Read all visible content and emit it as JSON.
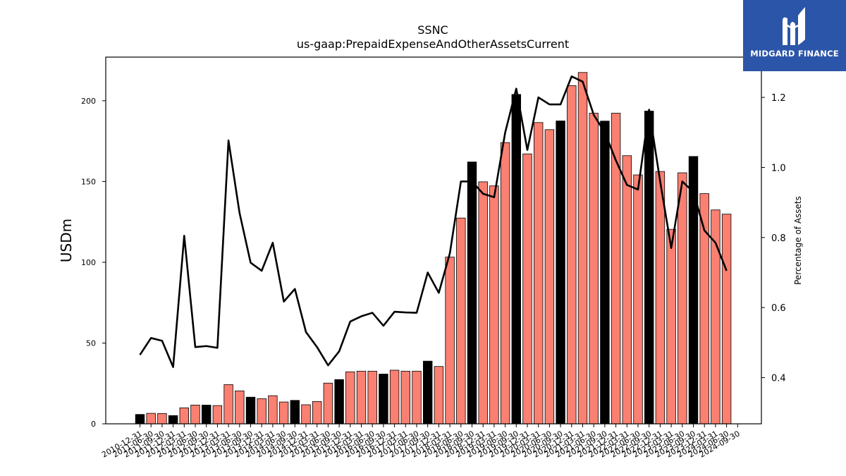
{
  "chart_data": {
    "type": "bar",
    "title": "SSNC",
    "subtitle": "us-gaap:PrepaidExpenseAndOtherAssetsCurrent",
    "ylabel": "USDm",
    "y2label": "Percentage of Assets",
    "ylim": [
      0,
      227
    ],
    "y2lim": [
      0.268,
      1.315
    ],
    "yticks": [
      0,
      50,
      100,
      150,
      200
    ],
    "y2ticks": [
      0.4,
      0.6,
      0.8,
      1.0,
      1.2
    ],
    "y2ticklabels": [
      "0.4",
      "0.6",
      "0.8",
      "1.0",
      "1.2"
    ],
    "categories": [
      "2010-12-31",
      "2011-06-30",
      "2011-09-30",
      "2011-12-31",
      "2012-03-31",
      "2012-06-30",
      "2012-09-30",
      "2012-12-31",
      "2013-03-31",
      "2013-06-30",
      "2013-09-30",
      "2013-12-31",
      "2014-03-31",
      "2014-06-30",
      "2014-09-30",
      "2014-12-31",
      "2015-03-31",
      "2015-06-30",
      "2015-09-30",
      "2015-12-31",
      "2016-03-31",
      "2016-06-30",
      "2016-09-30",
      "2016-12-31",
      "2017-03-31",
      "2017-06-30",
      "2017-09-30",
      "2017-12-31",
      "2018-03-31",
      "2018-06-30",
      "2018-09-30",
      "2018-12-31",
      "2019-03-31",
      "2019-06-30",
      "2019-09-30",
      "2019-12-31",
      "2020-03-31",
      "2020-06-30",
      "2020-09-30",
      "2020-12-31",
      "2021-03-31",
      "2021-06-30",
      "2021-09-30",
      "2021-12-31",
      "2022-03-31",
      "2022-06-30",
      "2022-09-30",
      "2022-12-31",
      "2023-03-31",
      "2023-06-30",
      "2023-09-30",
      "2023-12-31",
      "2024-03-31",
      "2024-06-30",
      "2024-09-30"
    ],
    "series": [
      {
        "kind": "bar",
        "values": [
          5.8,
          6.5,
          6.4,
          5.1,
          9.9,
          11.6,
          11.6,
          11.3,
          24.3,
          20.4,
          16.5,
          15.6,
          17.4,
          13.5,
          14.5,
          11.8,
          13.8,
          25.2,
          27.4,
          32.2,
          32.6,
          32.6,
          30.8,
          33.2,
          32.6,
          32.6,
          38.8,
          35.5,
          103.2,
          127.4,
          162.1,
          149.8,
          147.3,
          174.1,
          203.9,
          167.1,
          186.5,
          182.1,
          187.5,
          209.4,
          217.5,
          192.3,
          187.4,
          192.3,
          166.0,
          154.1,
          193.6,
          156.2,
          120.4,
          155.4,
          165.5,
          142.5,
          132.4,
          129.8,
          0
        ],
        "colors": [
          "black",
          "salmon",
          "salmon",
          "black",
          "salmon",
          "salmon",
          "black",
          "salmon",
          "salmon",
          "salmon",
          "black",
          "salmon",
          "salmon",
          "salmon",
          "black",
          "salmon",
          "salmon",
          "salmon",
          "black",
          "salmon",
          "salmon",
          "salmon",
          "black",
          "salmon",
          "salmon",
          "salmon",
          "black",
          "salmon",
          "salmon",
          "salmon",
          "black",
          "salmon",
          "salmon",
          "salmon",
          "black",
          "salmon",
          "salmon",
          "salmon",
          "black",
          "salmon",
          "salmon",
          "salmon",
          "black",
          "salmon",
          "salmon",
          "salmon",
          "black",
          "salmon",
          "salmon",
          "salmon",
          "black",
          "salmon",
          "salmon",
          "salmon",
          "none"
        ]
      },
      {
        "kind": "line",
        "axis": "right",
        "values": [
          0.465,
          0.513,
          0.505,
          0.43,
          0.805,
          0.487,
          0.49,
          0.485,
          1.077,
          0.87,
          0.728,
          0.705,
          0.785,
          0.617,
          0.653,
          0.53,
          0.487,
          0.435,
          0.475,
          0.56,
          0.575,
          0.585,
          0.548,
          0.588,
          0.586,
          0.585,
          0.7,
          0.642,
          0.755,
          0.96,
          0.96,
          0.925,
          0.915,
          1.1,
          1.225,
          1.05,
          1.2,
          1.18,
          1.18,
          1.26,
          1.245,
          1.15,
          1.1,
          1.02,
          0.95,
          0.937,
          1.165,
          0.96,
          0.77,
          0.96,
          0.93,
          0.82,
          0.785,
          0.705,
          null
        ]
      }
    ],
    "colors": {
      "salmon": "#fa8072",
      "black": "#000000",
      "line": "#000000"
    }
  },
  "logo": {
    "text": "MIDGARD FINANCE",
    "bg": "#2b55a8"
  }
}
